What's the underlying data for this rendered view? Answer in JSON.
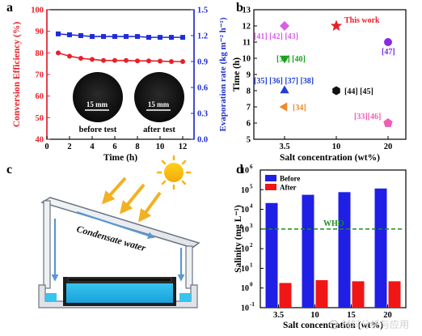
{
  "panels": {
    "a": "a",
    "b": "b",
    "c": "c",
    "d": "d"
  },
  "chart_data": [
    {
      "panel": "a",
      "type": "line",
      "x": [
        1,
        2,
        3,
        4,
        5,
        6,
        7,
        8,
        9,
        10,
        11,
        12
      ],
      "xlabel": "Time (h)",
      "xlim": [
        0,
        13
      ],
      "xticks": [
        0,
        2,
        4,
        6,
        8,
        10,
        12
      ],
      "ylabel": "Conversion Efficiency (%)",
      "ylim": [
        40,
        100
      ],
      "yticks": [
        40,
        50,
        60,
        70,
        80,
        90,
        100
      ],
      "y2label": "Evaporation rate (kg m⁻² h⁻¹)",
      "y2lim": [
        0.0,
        1.5
      ],
      "y2ticks": [
        "0.0",
        "0.3",
        "0.6",
        "0.9",
        "1.2",
        "1.5"
      ],
      "series": [
        {
          "axis": "left",
          "color": "#e8202a",
          "marker": "circle",
          "values": [
            80,
            78.5,
            77.5,
            77,
            76.5,
            76.5,
            76.5,
            76.3,
            76.3,
            76.2,
            76,
            76
          ]
        },
        {
          "axis": "right",
          "color": "#1f2dd6",
          "marker": "square",
          "values": [
            1.22,
            1.21,
            1.2,
            1.19,
            1.19,
            1.19,
            1.19,
            1.19,
            1.18,
            1.18,
            1.18,
            1.18
          ]
        }
      ],
      "insets": [
        {
          "scale": "15 mm",
          "caption": "before test"
        },
        {
          "scale": "15 mm",
          "caption": "after test"
        }
      ]
    },
    {
      "panel": "b",
      "type": "scatter",
      "xlabel": "Salt concentration (wt%)",
      "categories": [
        "3.5",
        "10",
        "20"
      ],
      "ylabel": "Time (h)",
      "ylim": [
        5,
        13
      ],
      "yticks": [
        5,
        6,
        7,
        8,
        9,
        10,
        11,
        12,
        13
      ],
      "points": [
        {
          "x": "3.5",
          "y": 12,
          "marker": "diamond",
          "color": "#d65fe6",
          "label": "[41] [42]  [43]",
          "label_color": "#d65fe6"
        },
        {
          "x": "3.5",
          "y": 10,
          "marker": "triangle-down",
          "color": "#1aa21a",
          "label": "[39] [40]",
          "label_color": "#1aa21a"
        },
        {
          "x": "3.5",
          "y": 8,
          "marker": "triangle-up",
          "color": "#1f3fd6",
          "label": "[35] [36] [37] [38]",
          "label_color": "#1f3fd6"
        },
        {
          "x": "3.5",
          "y": 7,
          "marker": "triangle-left",
          "color": "#ee8a2e",
          "label": "[34]",
          "label_color": "#ee8a2e"
        },
        {
          "x": "10",
          "y": 12,
          "marker": "star",
          "color": "#e8202a",
          "label": "This work",
          "label_color": "#e8202a"
        },
        {
          "x": "10",
          "y": 8,
          "marker": "hexagon",
          "color": "#111111",
          "label": "[44] [45]",
          "label_color": "#111111"
        },
        {
          "x": "20",
          "y": 11,
          "marker": "circle",
          "color": "#8a2be2",
          "label": "[47]",
          "label_color": "#7b2fd6"
        },
        {
          "x": "20",
          "y": 6,
          "marker": "pentagon",
          "color": "#ee5fb3",
          "label": "[33][46]",
          "label_color": "#ee5fb3"
        }
      ]
    },
    {
      "panel": "d",
      "type": "bar",
      "categories": [
        "3.5",
        "10",
        "15",
        "20"
      ],
      "xlabel": "Salt concentration (wt%)",
      "ylabel": "Salinity (mg L⁻¹)",
      "yscale": "log",
      "ylim": [
        0.1,
        1000000
      ],
      "ytick_exponents": [
        -1,
        0,
        1,
        2,
        3,
        4,
        5,
        6
      ],
      "legend": "top-left",
      "series": [
        {
          "name": "Before",
          "color": "#1f1fe6",
          "values": [
            21000,
            55000,
            75000,
            115000
          ]
        },
        {
          "name": "After",
          "color": "#f01616",
          "values": [
            1.8,
            2.5,
            2.2,
            2.2
          ]
        }
      ],
      "reference_line": {
        "label": "WHO",
        "value": 1000,
        "color": "#1a8f1a"
      }
    }
  ],
  "diagram_c": {
    "label": "Condensate water"
  },
  "watermark": "材料分析与应用"
}
